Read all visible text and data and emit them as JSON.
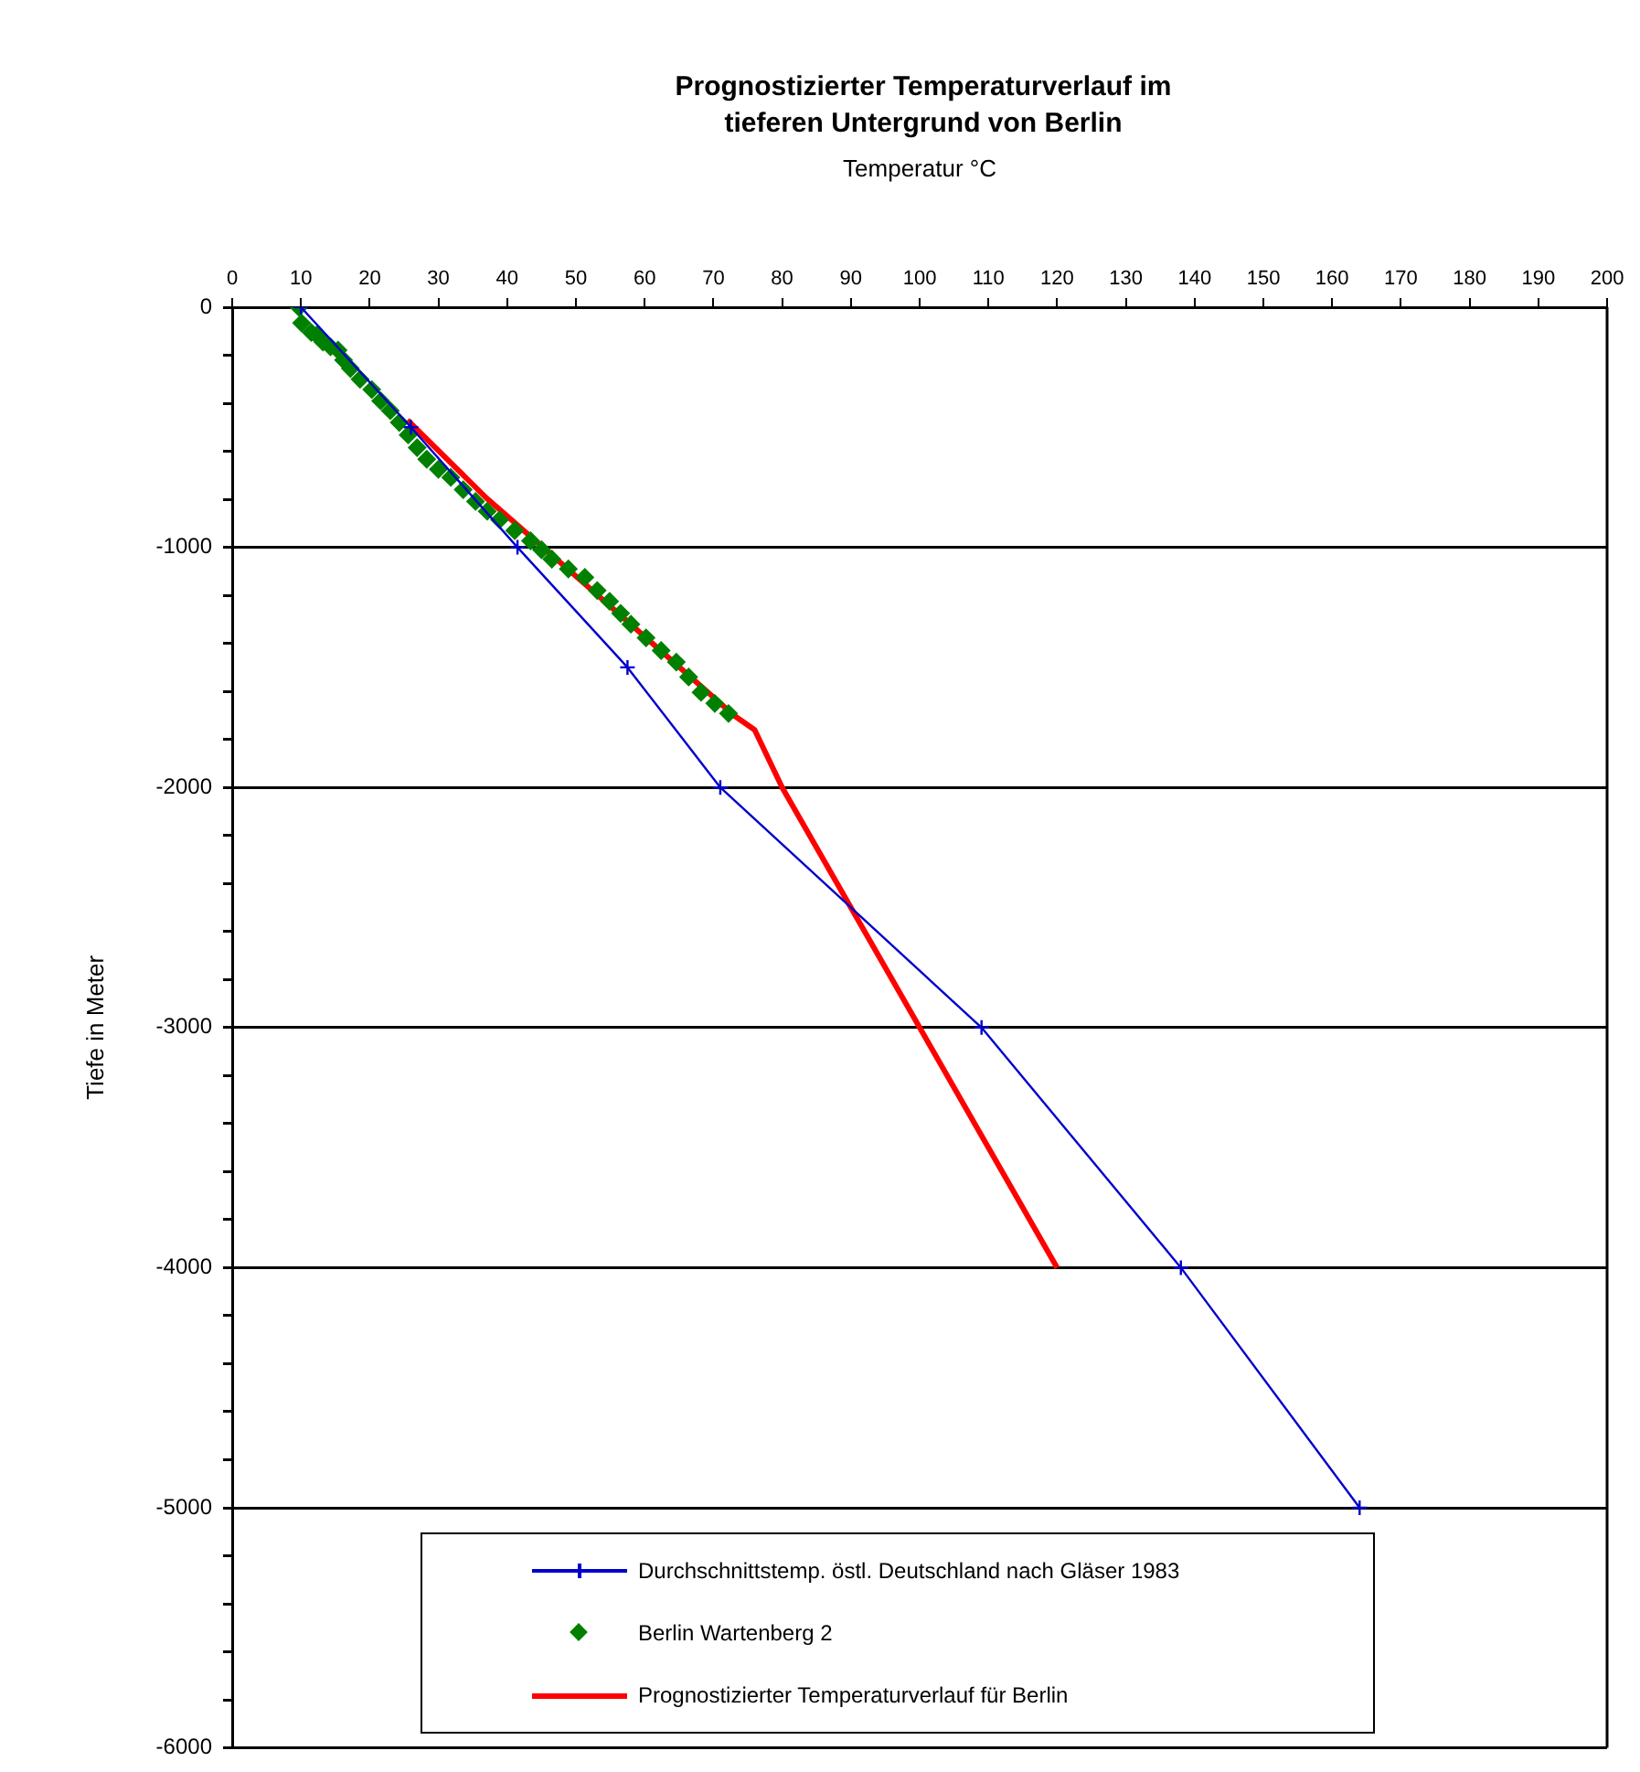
{
  "chart_data": {
    "type": "line",
    "title": "Prognostizierter Temperaturverlauf im tieferen Untergrund von Berlin",
    "xlabel": "Temperatur °C",
    "ylabel": "Tiefe in Meter",
    "xlim": [
      0,
      200
    ],
    "xticks": [
      0,
      10,
      20,
      30,
      40,
      50,
      60,
      70,
      80,
      90,
      100,
      110,
      120,
      130,
      140,
      150,
      160,
      170,
      180,
      190,
      200
    ],
    "ylim": [
      -6000,
      0
    ],
    "yticks": [
      0,
      {
        "value": -200,
        "label": null
      },
      {
        "value": -400,
        "label": null
      },
      {
        "value": -600,
        "label": null
      },
      {
        "value": -800,
        "label": null
      },
      -1000,
      {
        "value": -1200,
        "label": null
      },
      {
        "value": -1400,
        "label": null
      },
      {
        "value": -1600,
        "label": null
      },
      {
        "value": -1800,
        "label": null
      },
      -2000,
      {
        "value": -2200,
        "label": null
      },
      {
        "value": -2400,
        "label": null
      },
      {
        "value": -2600,
        "label": null
      },
      {
        "value": -2800,
        "label": null
      },
      -3000,
      {
        "value": -3200,
        "label": null
      },
      {
        "value": -3400,
        "label": null
      },
      {
        "value": -3600,
        "label": null
      },
      {
        "value": -3800,
        "label": null
      },
      -4000,
      {
        "value": -4200,
        "label": null
      },
      {
        "value": -4400,
        "label": null
      },
      {
        "value": -4600,
        "label": null
      },
      {
        "value": -4800,
        "label": null
      },
      -5000,
      {
        "value": -5200,
        "label": null
      },
      {
        "value": -5400,
        "label": null
      },
      {
        "value": -5600,
        "label": null
      },
      {
        "value": -5800,
        "label": null
      },
      -6000
    ],
    "grid": "y",
    "legend": "bottom",
    "series": [
      {
        "name": "Durchschnittstemp. östl. Deutschland nach Gläser 1983",
        "color": "#0000cc",
        "marker": "cross",
        "x": [
          10,
          26,
          41.5,
          57.5,
          71,
          109,
          138,
          164
        ],
        "values": [
          0,
          -500,
          -1000,
          -1500,
          -2000,
          -3000,
          -4000,
          -5000
        ]
      },
      {
        "name": "Berlin Wartenberg 2",
        "type": "scatter",
        "color": "#008000",
        "marker": "diamond",
        "x": [
          9.7,
          10.1,
          11.5,
          12.3,
          13.2,
          14.3,
          15.4,
          16.2,
          17.2,
          18.6,
          20.3,
          21.6,
          23,
          24.3,
          25.6,
          26.9,
          28.3,
          30,
          31.8,
          33.6,
          35.4,
          37.1,
          38.9,
          41.1,
          43.4,
          45,
          46.5,
          48.9,
          51.3,
          53.1,
          54.9,
          56.5,
          58,
          60.2,
          62.4,
          64.6,
          66.4,
          68.2,
          70.2,
          72.2
        ],
        "values": [
          0,
          -66,
          -105,
          -116,
          -145,
          -165,
          -179,
          -220,
          -255,
          -300,
          -343,
          -390,
          -431,
          -480,
          -532,
          -585,
          -633,
          -675,
          -709,
          -760,
          -809,
          -850,
          -885,
          -930,
          -973,
          -1010,
          -1049,
          -1090,
          -1125,
          -1180,
          -1225,
          -1275,
          -1320,
          -1377,
          -1430,
          -1478,
          -1540,
          -1604,
          -1650,
          -1692
        ]
      },
      {
        "name": "Prognostizierter Temperaturverlauf für Berlin",
        "color": "#ff0000",
        "marker": "none",
        "x": [
          25.5,
          37,
          52,
          73,
          76,
          80,
          90.7,
          100,
          120
        ],
        "values": [
          -470,
          -795,
          -1170,
          -1700,
          -1760,
          -2000,
          -2535,
          -3000,
          -4000
        ]
      }
    ]
  }
}
